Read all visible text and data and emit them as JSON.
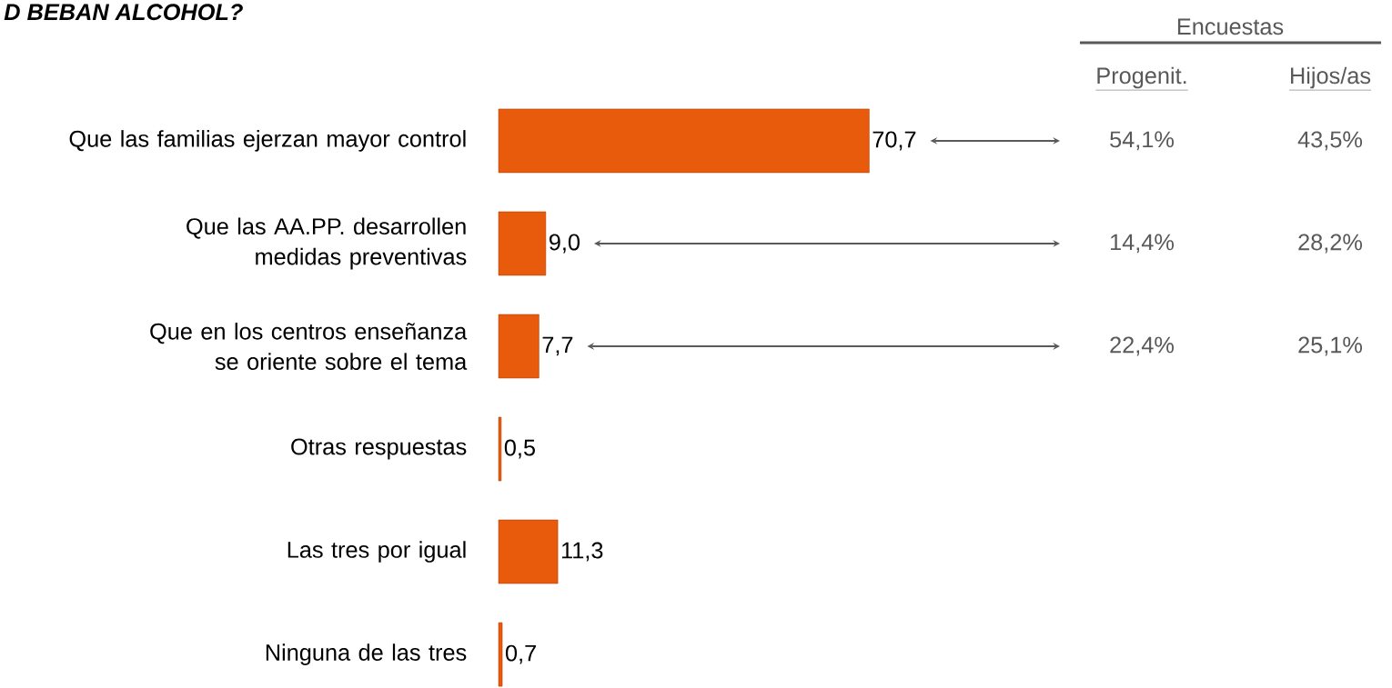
{
  "chart_data": {
    "type": "bar",
    "orientation": "horizontal",
    "title": "D BEBAN ALCOHOL?",
    "categories": [
      "Que las familias ejerzan mayor control",
      "Que las AA.PP. desarrollen medidas preventivas",
      "Que en los centros enseñanza se oriente sobre el tema",
      "Otras respuestas",
      "Las tres por igual",
      "Ninguna de las tres"
    ],
    "values": [
      70.7,
      9.0,
      7.7,
      0.5,
      11.3,
      0.7
    ],
    "value_labels": [
      "70,7",
      "9,0",
      "7,7",
      "0,5",
      "11,3",
      "0,7"
    ],
    "color": "#e85a0c",
    "annotations": [
      "Encuestas",
      "Progenit.",
      "Hijos/as",
      "54,1%",
      "43,5%",
      "14,4%",
      "28,2%",
      "22,4%",
      "25,1%"
    ]
  }
}
